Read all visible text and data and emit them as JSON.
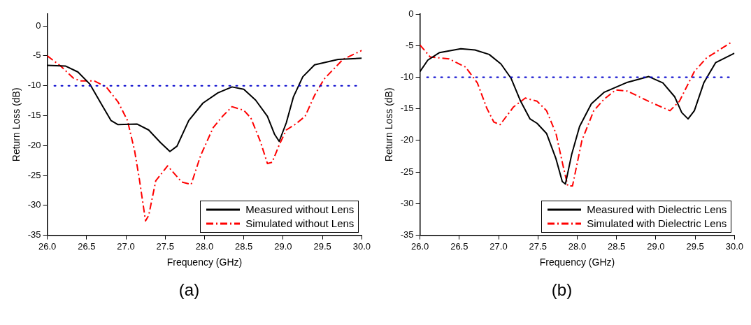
{
  "chart_data": [
    {
      "type": "line",
      "xlabel": "Frequency (GHz)",
      "ylabel": "Return Loss (dB)",
      "annotations": [
        "(a)"
      ],
      "xlim": [
        26,
        30
      ],
      "ylim": [
        -35,
        2
      ],
      "xticks": [
        {
          "value": 26,
          "label": "26.0"
        },
        {
          "value": 26.5,
          "label": "26.5"
        },
        {
          "value": 27,
          "label": "27.0"
        },
        {
          "value": 27.5,
          "label": "27.5"
        },
        {
          "value": 28,
          "label": "28.0"
        },
        {
          "value": 28.5,
          "label": "28.5"
        },
        {
          "value": 29,
          "label": "29.0"
        },
        {
          "value": 29.5,
          "label": "29.5"
        },
        {
          "value": 30,
          "label": "30.0"
        }
      ],
      "yticks": [
        0,
        -5,
        -10,
        -15,
        -20,
        -25,
        -30,
        -35
      ],
      "grid": false,
      "legend": "bottom right",
      "marker": "none",
      "ref_lines": [
        {
          "axis": "y",
          "value": -10,
          "color": "#0000cc",
          "line_style": "dotted"
        }
      ],
      "series": [
        {
          "name": "Measured without Lens",
          "color": "#000000",
          "line_style": "solid",
          "x": [
            26.0,
            26.23,
            26.39,
            26.54,
            26.69,
            26.81,
            26.9,
            27.14,
            27.29,
            27.44,
            27.56,
            27.65,
            27.8,
            27.98,
            28.17,
            28.35,
            28.5,
            28.65,
            28.8,
            28.89,
            28.95,
            29.04,
            29.13,
            29.25,
            29.4,
            29.7,
            30.0
          ],
          "values": [
            -6.6,
            -6.7,
            -7.7,
            -9.7,
            -13.1,
            -15.8,
            -16.5,
            -16.4,
            -17.4,
            -19.5,
            -21,
            -20.1,
            -15.8,
            -12.9,
            -11.2,
            -10.2,
            -10.6,
            -12.4,
            -15.1,
            -18.1,
            -19.3,
            -16.2,
            -11.9,
            -8.5,
            -6.5,
            -5.6,
            -5.4
          ]
        },
        {
          "name": "Simulated without Lens",
          "color": "#ff0000",
          "line_style": "dashed",
          "x": [
            26.0,
            26.17,
            26.33,
            26.42,
            26.6,
            26.75,
            26.9,
            27.02,
            27.11,
            27.17,
            27.25,
            27.29,
            27.38,
            27.53,
            27.71,
            27.83,
            27.95,
            28.11,
            28.23,
            28.35,
            28.5,
            28.59,
            28.71,
            28.8,
            28.86,
            28.95,
            29.04,
            29.16,
            29.28,
            29.4,
            29.52,
            29.76,
            30.0
          ],
          "values": [
            -5.0,
            -6.7,
            -8.7,
            -9.2,
            -9.2,
            -10.2,
            -12.7,
            -15.8,
            -20.8,
            -25.5,
            -32.6,
            -31.7,
            -25.9,
            -23.4,
            -26.1,
            -26.5,
            -21.7,
            -17.0,
            -15.1,
            -13.5,
            -14.1,
            -15.4,
            -19.3,
            -23.0,
            -22.8,
            -19.9,
            -17.4,
            -16.4,
            -15.1,
            -11.6,
            -8.9,
            -5.6,
            -4.1
          ]
        }
      ]
    },
    {
      "type": "line",
      "xlabel": "Frequency (GHz)",
      "ylabel": "Return Loss (dB)",
      "annotations": [
        "(b)"
      ],
      "xlim": [
        26,
        30
      ],
      "ylim": [
        -35,
        0
      ],
      "xticks": [
        {
          "value": 26,
          "label": "26.0"
        },
        {
          "value": 26.5,
          "label": "26.5"
        },
        {
          "value": 27,
          "label": "27.0"
        },
        {
          "value": 27.5,
          "label": "27.5"
        },
        {
          "value": 28,
          "label": "28.0"
        },
        {
          "value": 28.5,
          "label": "28.5"
        },
        {
          "value": 29,
          "label": "29.0"
        },
        {
          "value": 29.5,
          "label": "29.5"
        },
        {
          "value": 30,
          "label": "30.0"
        }
      ],
      "yticks": [
        0,
        -5,
        -10,
        -15,
        -20,
        -25,
        -30,
        -35
      ],
      "grid": false,
      "legend": "bottom right",
      "marker": "none",
      "ref_lines": [
        {
          "axis": "y",
          "value": -10,
          "color": "#0000cc",
          "line_style": "dotted"
        }
      ],
      "series": [
        {
          "name": "Measured with Dielectric Lens",
          "color": "#000000",
          "line_style": "solid",
          "x": [
            26.0,
            26.1,
            26.25,
            26.52,
            26.7,
            26.88,
            27.03,
            27.16,
            27.28,
            27.4,
            27.49,
            27.61,
            27.73,
            27.81,
            27.85,
            27.93,
            28.03,
            28.18,
            28.34,
            28.64,
            28.91,
            29.09,
            29.24,
            29.33,
            29.41,
            29.49,
            29.61,
            29.76,
            30.0
          ],
          "values": [
            -9.1,
            -7.3,
            -6.1,
            -5.5,
            -5.7,
            -6.4,
            -7.9,
            -10.2,
            -13.8,
            -16.6,
            -17.3,
            -18.9,
            -22.9,
            -26.5,
            -26.9,
            -22.2,
            -17.8,
            -14.2,
            -12.4,
            -10.8,
            -9.9,
            -10.9,
            -13.1,
            -15.6,
            -16.6,
            -15.3,
            -10.9,
            -7.7,
            -6.2
          ]
        },
        {
          "name": "Simulated with Dielectric Lens",
          "color": "#ff0000",
          "line_style": "dashed",
          "x": [
            26.0,
            26.13,
            26.37,
            26.58,
            26.73,
            26.85,
            26.94,
            27.02,
            27.19,
            27.34,
            27.49,
            27.61,
            27.73,
            27.82,
            27.88,
            27.94,
            28.06,
            28.21,
            28.34,
            28.49,
            28.64,
            28.94,
            29.18,
            29.3,
            29.49,
            29.64,
            29.97
          ],
          "values": [
            -4.9,
            -6.8,
            -7.1,
            -8.4,
            -10.9,
            -14.9,
            -17.1,
            -17.5,
            -14.7,
            -13.3,
            -13.8,
            -15.3,
            -18.9,
            -24.0,
            -27.2,
            -27.2,
            -20.0,
            -15.3,
            -13.5,
            -12.0,
            -12.2,
            -14.0,
            -15.3,
            -13.8,
            -9.1,
            -7.0,
            -4.4
          ]
        }
      ]
    }
  ]
}
